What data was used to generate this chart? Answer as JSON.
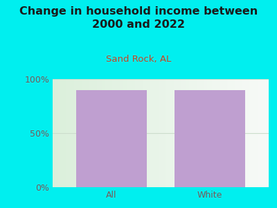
{
  "title": "Change in household income between\n2000 and 2022",
  "subtitle": "Sand Rock, AL",
  "categories": [
    "All",
    "White"
  ],
  "values": [
    90.0,
    90.0
  ],
  "bar_color": "#bf9fd0",
  "background_color": "#00EFEF",
  "plot_bg_left": "#ddeedd",
  "plot_bg_right": "#f5f5f5",
  "title_fontsize": 11.5,
  "subtitle_fontsize": 9.5,
  "subtitle_color": "#cc4422",
  "tick_label_color": "#7a5a5a",
  "title_color": "#1a1a1a",
  "ylim": [
    0,
    100
  ],
  "yticks": [
    0,
    50,
    100
  ],
  "ytick_labels": [
    "0%",
    "50%",
    "100%"
  ],
  "bar_width": 0.72,
  "grid_color": "#ccddcc"
}
